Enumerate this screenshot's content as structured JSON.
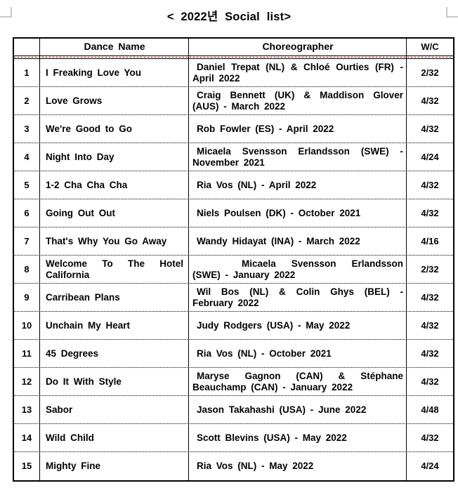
{
  "page": {
    "title": "< 2022년 Social list>"
  },
  "colors": {
    "border": "#000000",
    "header_divider_red": "#cc0000",
    "corner_mark": "#c9c9c9",
    "text": "#000000",
    "background": "#ffffff"
  },
  "table": {
    "headers": {
      "num": "",
      "dance": "Dance Name",
      "choreo": "Choreographer",
      "wc": "W/C"
    },
    "rows": [
      {
        "num": "1",
        "dance": "I Freaking Love You",
        "choreo": "Daniel Trepat (NL) & Chloé Ourties (FR) - April 2022",
        "wc": "2/32"
      },
      {
        "num": "2",
        "dance": "Love Grows",
        "choreo": "Craig Bennett (UK) & Maddison Glover (AUS) - March 2022",
        "wc": "4/32"
      },
      {
        "num": "3",
        "dance": "We're Good to Go",
        "choreo": "Rob Fowler (ES) - April 2022",
        "wc": "4/32"
      },
      {
        "num": "4",
        "dance": "Night Into Day",
        "choreo": "Micaela Svensson Erlandsson (SWE) - November 2021",
        "wc": "4/24"
      },
      {
        "num": "5",
        "dance": "1-2 Cha Cha Cha",
        "choreo": "Ria Vos (NL) - April 2022",
        "wc": "4/32"
      },
      {
        "num": "6",
        "dance": "Going Out Out",
        "choreo": "Niels Poulsen (DK) - October 2021",
        "wc": "4/32"
      },
      {
        "num": "7",
        "dance": "That's Why You Go Away",
        "choreo": "Wandy Hidayat (INA) - March 2022",
        "wc": "4/16"
      },
      {
        "num": "8",
        "dance": "Welcome To The Hotel California",
        "choreo": "Micaela Svensson Erlandsson (SWE) - January 2022",
        "wc": "2/32",
        "choreo_indent": 70
      },
      {
        "num": "9",
        "dance": "Carribean Plans",
        "choreo": "Wil Bos (NL) & Colin Ghys (BEL) - February 2022",
        "wc": "4/32"
      },
      {
        "num": "10",
        "dance": "Unchain My Heart",
        "choreo": "Judy Rodgers (USA) - May 2022",
        "wc": "4/32"
      },
      {
        "num": "11",
        "dance": "45 Degrees",
        "choreo": "Ria Vos (NL) - October 2021",
        "wc": "4/32"
      },
      {
        "num": "12",
        "dance": "Do It With Style",
        "choreo": "Maryse Gagnon (CAN) & Stéphane Beauchamp (CAN) - January 2022",
        "wc": "4/32"
      },
      {
        "num": "13",
        "dance": "Sabor",
        "choreo": "Jason Takahashi (USA) - June 2022",
        "wc": "4/48"
      },
      {
        "num": "14",
        "dance": "Wild Child",
        "choreo": "Scott Blevins (USA) - May 2022",
        "wc": "4/32"
      },
      {
        "num": "15",
        "dance": "Mighty Fine",
        "choreo": "Ria Vos (NL) - May 2022",
        "wc": "4/24"
      }
    ]
  }
}
